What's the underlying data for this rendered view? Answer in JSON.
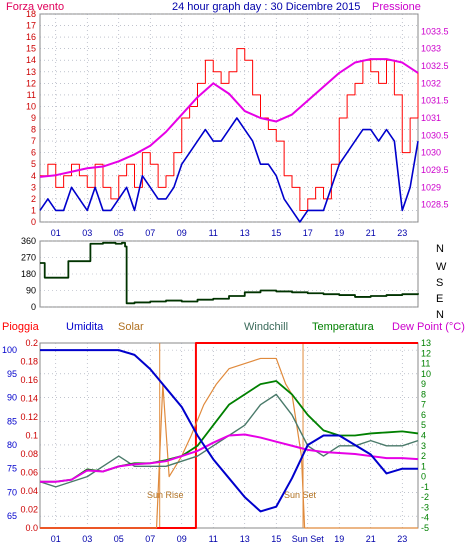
{
  "header": {
    "left": "Forza vento",
    "center": "24 hour graph day : 30 Dicembre 2015",
    "right": "Pressione"
  },
  "colors": {
    "wind_gust": "#ff0000",
    "wind_avg": "#0000cc",
    "pressure": "#e600e6",
    "direction": "#003300",
    "rain": "#ff0000",
    "humidity": "#0000cc",
    "solar": "#e08a3c",
    "windchill": "#4a7a6a",
    "temperature": "#008000",
    "dewpoint": "#e600e6",
    "grid": "#9aa0b0",
    "axis_text": "#0000aa"
  },
  "x_ticks": [
    "01",
    "03",
    "05",
    "07",
    "09",
    "11",
    "13",
    "15",
    "17",
    "19",
    "21",
    "23"
  ],
  "chart_data": [
    {
      "type": "line",
      "title": "24 hour graph day : 30 Dicembre 2015",
      "ylabel_left": "Forza vento",
      "ylabel_right": "Pressione",
      "xlim": [
        0,
        24
      ],
      "ylim_left": [
        0,
        18
      ],
      "ylim_right": [
        1028,
        1034
      ],
      "yticks_left": [
        "0",
        "1",
        "2",
        "3",
        "4",
        "5",
        "6",
        "7",
        "8",
        "9",
        "10",
        "11",
        "12",
        "13",
        "14",
        "15",
        "16",
        "17",
        "18"
      ],
      "yticks_right": [
        "1028.5",
        "1029",
        "1029.5",
        "1030",
        "1030.5",
        "1031",
        "1031.5",
        "1032",
        "1032.5",
        "1033",
        "1033.5"
      ],
      "series": [
        {
          "axis": "left",
          "x": [
            0,
            0.5,
            1,
            1.5,
            2,
            2.5,
            3,
            3.5,
            4,
            4.5,
            5,
            5.5,
            6,
            6.5,
            7,
            7.5,
            8,
            8.5,
            9,
            9.5,
            10,
            10.5,
            11,
            11.5,
            12,
            12.5,
            13,
            13.5,
            14,
            14.5,
            15,
            15.5,
            16,
            16.5,
            17,
            17.5,
            18,
            18.5,
            19,
            19.5,
            20,
            20.5,
            21,
            21.5,
            22,
            22.5,
            23,
            23.5,
            24
          ],
          "y": [
            4,
            5,
            3,
            4,
            5,
            4,
            3,
            5,
            3,
            2,
            4,
            5,
            3,
            6,
            5,
            3,
            4,
            6,
            9,
            10,
            12,
            14,
            13,
            12,
            13,
            15,
            14,
            11,
            9,
            8,
            7,
            4,
            3,
            1,
            2,
            3,
            2,
            5,
            9,
            11,
            12,
            14,
            13,
            12,
            14,
            11,
            6,
            9,
            13
          ]
        },
        {
          "axis": "left",
          "x": [
            0,
            0.5,
            1,
            1.5,
            2,
            2.5,
            3,
            3.5,
            4,
            4.5,
            5,
            5.5,
            6,
            6.5,
            7,
            7.5,
            8,
            8.5,
            9,
            9.5,
            10,
            10.5,
            11,
            11.5,
            12,
            12.5,
            13,
            13.5,
            14,
            14.5,
            15,
            15.5,
            16,
            16.5,
            17,
            17.5,
            18,
            18.5,
            19,
            19.5,
            20,
            20.5,
            21,
            21.5,
            22,
            22.5,
            23,
            23.5,
            24
          ],
          "y": [
            1,
            2,
            1,
            1,
            3,
            2,
            1,
            3,
            1,
            1,
            2,
            3,
            1,
            4,
            3,
            2,
            2,
            3,
            5,
            6,
            7,
            8,
            7,
            7,
            8,
            9,
            8,
            7,
            5,
            5,
            4,
            2,
            1,
            0,
            1,
            1,
            1,
            3,
            5,
            6,
            7,
            8,
            8,
            7,
            8,
            7,
            1,
            3,
            7
          ]
        },
        {
          "axis": "right",
          "x": [
            0,
            1,
            2,
            3,
            4,
            5,
            6,
            7,
            8,
            9,
            10,
            11,
            12,
            13,
            14,
            15,
            16,
            17,
            18,
            19,
            20,
            21,
            22,
            23,
            24
          ],
          "y": [
            1029.3,
            1029.35,
            1029.45,
            1029.55,
            1029.6,
            1029.75,
            1029.95,
            1030.2,
            1030.6,
            1031.1,
            1031.6,
            1032.0,
            1031.7,
            1031.2,
            1031.0,
            1030.9,
            1031.1,
            1031.5,
            1031.9,
            1032.3,
            1032.6,
            1032.7,
            1032.7,
            1032.6,
            1032.3
          ]
        }
      ]
    },
    {
      "type": "line",
      "ylabel_right": "N W S E N",
      "xlim": [
        0,
        24
      ],
      "ylim": [
        0,
        360
      ],
      "yticks": [
        "0",
        "90",
        "180",
        "270",
        "360"
      ],
      "series": [
        {
          "x": [
            0,
            0.3,
            1.2,
            1.8,
            2.6,
            3.2,
            4.0,
            4.8,
            5.2,
            5.4,
            5.5,
            6,
            7,
            8,
            9,
            10,
            11,
            12,
            13,
            14,
            15,
            16,
            17,
            18,
            19,
            20,
            21,
            22,
            23,
            24
          ],
          "y": [
            240,
            160,
            160,
            250,
            250,
            345,
            350,
            345,
            350,
            330,
            20,
            25,
            30,
            35,
            30,
            40,
            45,
            60,
            80,
            90,
            85,
            80,
            75,
            70,
            65,
            55,
            60,
            65,
            70,
            75
          ]
        }
      ]
    },
    {
      "type": "line",
      "legend": [
        "Pioggia",
        "Umidita",
        "Solar",
        "Windchill",
        "Temperatura",
        "Dew Point (°C)"
      ],
      "xlim": [
        0,
        24
      ],
      "yticks_humidity": [
        "65",
        "70",
        "75",
        "80",
        "85",
        "90",
        "95",
        "100"
      ],
      "yticks_rain": [
        "0.0",
        "0.02",
        "0.04",
        "0.06",
        "0.08",
        "0.1",
        "0.12",
        "0.14",
        "0.16",
        "0.18",
        "0.2"
      ],
      "yticks_temp": [
        "-5",
        "-4",
        "-3",
        "-2",
        "-1",
        "0",
        "1",
        "2",
        "3",
        "4",
        "5",
        "6",
        "7",
        "8",
        "9",
        "10",
        "11",
        "12",
        "13"
      ],
      "ylim_humidity": [
        62.5,
        101.5
      ],
      "ylim_rain": [
        0,
        0.2
      ],
      "ylim_temp": [
        -5,
        13
      ],
      "xticks": [
        "01",
        "03",
        "05",
        "07",
        "09",
        "11",
        "13",
        "15",
        "Sun Set",
        "19",
        "21",
        "23"
      ],
      "annotations": [
        "Sun Rise",
        "Sun Set"
      ],
      "series": [
        {
          "name": "Pioggia",
          "axis": "rain",
          "x": [
            0,
            9.9,
            9.9,
            24
          ],
          "y": [
            0,
            0,
            0.2,
            0.2
          ]
        },
        {
          "name": "Umidita",
          "axis": "humidity",
          "x": [
            0,
            1,
            2,
            3,
            4,
            5,
            6,
            7,
            8,
            9,
            10,
            11,
            12,
            13,
            14,
            15,
            16,
            17,
            18,
            19,
            20,
            21,
            22,
            23,
            24
          ],
          "y": [
            100,
            100,
            100,
            100,
            100,
            100,
            99,
            96,
            92,
            88,
            82,
            77,
            73,
            69,
            66,
            67,
            73,
            80,
            82,
            82,
            80,
            78,
            74,
            75,
            75
          ]
        },
        {
          "name": "Solar",
          "axis": "temp",
          "x": [
            0,
            7.4,
            7.8,
            8.2,
            8.6,
            9.0,
            9.6,
            10.4,
            11.2,
            12,
            13,
            14,
            15,
            15.6,
            16,
            16.6,
            16.8,
            24
          ],
          "y": [
            -5,
            -5,
            9,
            0,
            1,
            2,
            4,
            7,
            9,
            10.5,
            11,
            11.5,
            11.5,
            9,
            8,
            2,
            -5,
            -5
          ]
        },
        {
          "name": "Windchill",
          "axis": "temp",
          "x": [
            0,
            1,
            2,
            3,
            4,
            5,
            6,
            7,
            8,
            9,
            10,
            11,
            12,
            13,
            14,
            15,
            16,
            17,
            18,
            19,
            20,
            21,
            22,
            23,
            24
          ],
          "y": [
            -0.5,
            -1,
            -0.5,
            0,
            1,
            2,
            1,
            1,
            1,
            1.5,
            2,
            3,
            4,
            5,
            7,
            8,
            6,
            3,
            2,
            3,
            3,
            3.5,
            3,
            3,
            3.5
          ]
        },
        {
          "name": "Temperatura",
          "axis": "temp",
          "x": [
            0,
            1,
            2,
            3,
            4,
            5,
            6,
            7,
            8,
            9,
            10,
            11,
            12,
            13,
            14,
            15,
            16,
            17,
            18,
            19,
            20,
            21,
            22,
            23,
            24
          ],
          "y": [
            -0.5,
            -0.5,
            -0.3,
            0.7,
            0.5,
            1,
            1.3,
            1.3,
            1.6,
            2,
            3,
            5,
            7,
            8,
            9,
            9.3,
            8,
            6,
            4.5,
            4,
            4,
            4.2,
            4.3,
            4.4,
            4.2
          ]
        },
        {
          "name": "Dew Point (°C)",
          "axis": "temp",
          "x": [
            0,
            1,
            2,
            3,
            4,
            5,
            6,
            7,
            8,
            9,
            10,
            11,
            12,
            13,
            14,
            15,
            16,
            17,
            18,
            19,
            20,
            21,
            22,
            23,
            24
          ],
          "y": [
            -0.5,
            -0.5,
            -0.3,
            0.6,
            0.5,
            1,
            1.2,
            1.3,
            1.5,
            2,
            2.5,
            3.3,
            4,
            4.1,
            3.8,
            3.4,
            3,
            2.6,
            2.4,
            2.3,
            2.2,
            2,
            1.8,
            1.8,
            1.7
          ]
        }
      ]
    }
  ]
}
